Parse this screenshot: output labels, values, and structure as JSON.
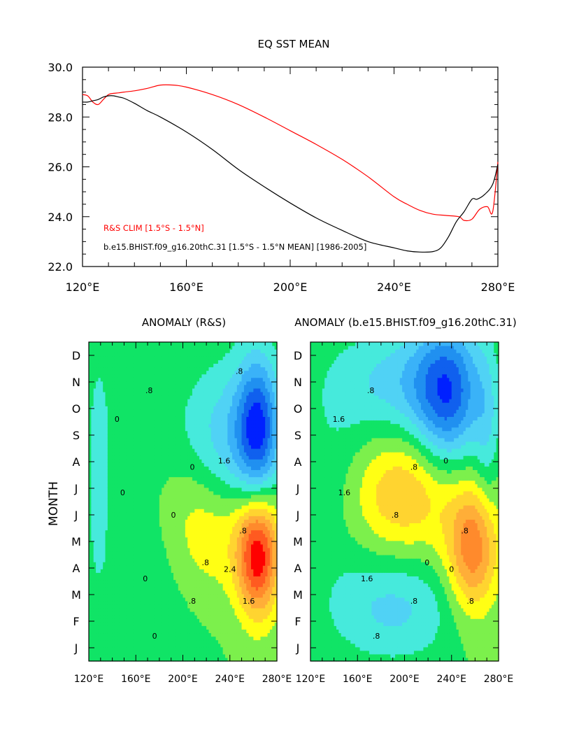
{
  "chart_data": [
    {
      "type": "line",
      "title": "EQ SST MEAN",
      "xlim": [
        120,
        280
      ],
      "ylim": [
        22,
        30
      ],
      "x_ticks": [
        120,
        160,
        200,
        240,
        280
      ],
      "x_tick_labels": [
        "120°E",
        "160°E",
        "200°E",
        "240°E",
        "280°E"
      ],
      "y_ticks": [
        22,
        24,
        26,
        28,
        30
      ],
      "y_tick_labels": [
        "22.0",
        "24.0",
        "26.0",
        "28.0",
        "30.0"
      ],
      "grid": false,
      "legend_position": "bottom-left",
      "series": [
        {
          "name": "R&S CLIM [1.5°S - 1.5°N]",
          "color": "#ff0000",
          "x": [
            120,
            122,
            124,
            126,
            128,
            130,
            132,
            134,
            136,
            140,
            145,
            150,
            155,
            160,
            170,
            180,
            190,
            200,
            210,
            220,
            230,
            240,
            245,
            250,
            255,
            260,
            265,
            267,
            270,
            273,
            276,
            278,
            280
          ],
          "y": [
            28.9,
            28.85,
            28.6,
            28.5,
            28.7,
            28.9,
            28.95,
            28.97,
            29.0,
            29.05,
            29.15,
            29.28,
            29.28,
            29.2,
            28.9,
            28.5,
            28.0,
            27.45,
            26.9,
            26.3,
            25.6,
            24.8,
            24.5,
            24.25,
            24.1,
            24.05,
            24.0,
            23.85,
            23.9,
            24.3,
            24.4,
            24.2,
            26.2
          ]
        },
        {
          "name": "b.e15.BHIST.f09_g16.20thC.31 [1.5°S - 1.5°N MEAN] [1986-2005]",
          "color": "#000000",
          "x": [
            120,
            122,
            124,
            126,
            128,
            130,
            132,
            134,
            136,
            140,
            145,
            150,
            160,
            170,
            180,
            190,
            200,
            210,
            220,
            230,
            240,
            245,
            250,
            255,
            258,
            261,
            264,
            267,
            270,
            272,
            275,
            278,
            280
          ],
          "y": [
            28.6,
            28.6,
            28.65,
            28.7,
            28.8,
            28.85,
            28.85,
            28.8,
            28.75,
            28.55,
            28.25,
            28.0,
            27.4,
            26.7,
            25.9,
            25.2,
            24.55,
            23.95,
            23.45,
            23.0,
            22.75,
            22.63,
            22.58,
            22.6,
            22.75,
            23.2,
            23.8,
            24.2,
            24.7,
            24.7,
            24.9,
            25.3,
            26.1
          ]
        }
      ],
      "legend": [
        {
          "text": "R&S CLIM [1.5°S - 1.5°N]",
          "color": "#ff0000"
        },
        {
          "text": "b.e15.BHIST.f09_g16.20thC.31 [1.5°S - 1.5°N MEAN] [1986-2005]",
          "color": "#000000"
        }
      ]
    },
    {
      "type": "heatmap",
      "title": "ANOMALY (R&S)",
      "xlim": [
        120,
        280
      ],
      "x_ticks": [
        120,
        160,
        200,
        240,
        280
      ],
      "x_tick_labels": [
        "120°E",
        "160°E",
        "200°E",
        "240°E",
        "280°E"
      ],
      "ylabel": "MONTH",
      "y_tick_labels": [
        "J",
        "F",
        "M",
        "A",
        "M",
        "J",
        "J",
        "A",
        "S",
        "O",
        "N",
        "D"
      ],
      "contour_labels": [
        ".8",
        "0",
        "0",
        "1.6",
        ".8",
        ".8",
        "0",
        "0",
        "0",
        ".8",
        "1.6",
        "2.4",
        "0",
        ".8"
      ],
      "extrema": {
        "cold": {
          "x": 264,
          "month": 8.3,
          "value": -2.2
        },
        "warm": {
          "x": 264,
          "month": 3.5,
          "value": 2.6
        }
      },
      "levels": [
        -2.4,
        -2.0,
        -1.6,
        -1.2,
        -0.8,
        -0.4,
        0,
        0.4,
        0.8,
        1.2,
        1.6,
        2.0,
        2.4
      ],
      "colors": [
        "#0020ff",
        "#1060ee",
        "#2090f0",
        "#3ab2f8",
        "#50d2f5",
        "#46eadc",
        "#10e466",
        "#7cf04c",
        "#ffff14",
        "#ffd430",
        "#ffae38",
        "#ff8a2c",
        "#ff5a20",
        "#ff0000"
      ]
    },
    {
      "type": "heatmap",
      "title": "ANOMALY (b.e15.BHIST.f09_g16.20thC.31)",
      "xlim": [
        120,
        280
      ],
      "x_ticks": [
        120,
        160,
        200,
        240,
        280
      ],
      "x_tick_labels": [
        "120°E",
        "160°E",
        "200°E",
        "240°E",
        "280°E"
      ],
      "y_tick_labels": [
        "J",
        "F",
        "M",
        "A",
        "M",
        "J",
        "J",
        "A",
        "S",
        "O",
        "N",
        "D"
      ],
      "contour_labels": [
        ".8",
        "1.6",
        ".8",
        "0",
        ".8",
        ".8",
        "1.6",
        "1.6",
        ".8",
        "0",
        ".8",
        "0",
        ".8"
      ],
      "extrema": {
        "cold": {
          "x": 237,
          "month": 9.5,
          "value": -1.9
        },
        "warm": {
          "x": 258,
          "month": 3.7,
          "value": 1.9
        }
      },
      "levels": [
        -2.4,
        -2.0,
        -1.6,
        -1.2,
        -0.8,
        -0.4,
        0,
        0.4,
        0.8,
        1.2,
        1.6,
        2.0,
        2.4
      ],
      "colors": [
        "#0020ff",
        "#1060ee",
        "#2090f0",
        "#3ab2f8",
        "#50d2f5",
        "#46eadc",
        "#10e466",
        "#7cf04c",
        "#ffff14",
        "#ffd430",
        "#ffae38",
        "#ff8a2c",
        "#ff5a20",
        "#ff0000"
      ]
    }
  ]
}
